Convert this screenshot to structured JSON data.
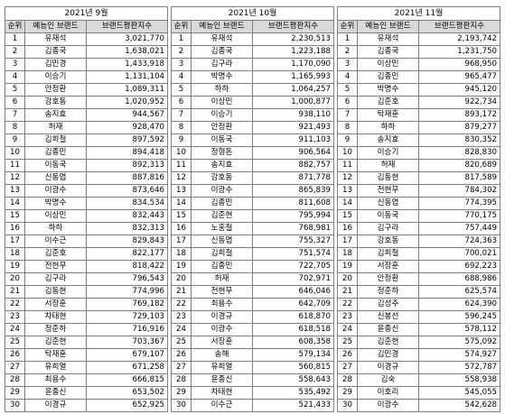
{
  "headers": {
    "rank": "순위",
    "brand": "예능인 브랜드",
    "index": "브랜드평판지수"
  },
  "months": [
    {
      "title": "2021년 9월",
      "rows": [
        [
          "1",
          "유재석",
          "3,021,770"
        ],
        [
          "2",
          "김종국",
          "1,638,021"
        ],
        [
          "3",
          "김민경",
          "1,433,918"
        ],
        [
          "4",
          "이승기",
          "1,131,104"
        ],
        [
          "5",
          "안정환",
          "1,089,311"
        ],
        [
          "6",
          "강호동",
          "1,020,952"
        ],
        [
          "7",
          "송지효",
          "944,567"
        ],
        [
          "8",
          "허재",
          "928,470"
        ],
        [
          "9",
          "김희철",
          "897,592"
        ],
        [
          "10",
          "김종민",
          "894,418"
        ],
        [
          "11",
          "이동국",
          "892,313"
        ],
        [
          "12",
          "신동엽",
          "887,816"
        ],
        [
          "13",
          "이광수",
          "873,646"
        ],
        [
          "14",
          "박명수",
          "834,534"
        ],
        [
          "15",
          "이상민",
          "832,443"
        ],
        [
          "16",
          "하하",
          "832,313"
        ],
        [
          "17",
          "이수근",
          "829,843"
        ],
        [
          "18",
          "김준호",
          "822,177"
        ],
        [
          "19",
          "전현무",
          "818,422"
        ],
        [
          "20",
          "김구라",
          "796,543"
        ],
        [
          "21",
          "김동현",
          "774,996"
        ],
        [
          "22",
          "서장훈",
          "769,182"
        ],
        [
          "23",
          "차태현",
          "729,103"
        ],
        [
          "24",
          "정준하",
          "716,916"
        ],
        [
          "25",
          "김준현",
          "703,367"
        ],
        [
          "26",
          "탁재훈",
          "679,107"
        ],
        [
          "27",
          "유희열",
          "671,258"
        ],
        [
          "28",
          "최용수",
          "666,815"
        ],
        [
          "29",
          "윤종신",
          "653,502"
        ],
        [
          "30",
          "이경규",
          "652,925"
        ]
      ]
    },
    {
      "title": "2021년 10월",
      "rows": [
        [
          "1",
          "유재석",
          "2,230,513"
        ],
        [
          "2",
          "김종국",
          "1,223,188"
        ],
        [
          "3",
          "김구라",
          "1,170,090"
        ],
        [
          "4",
          "박명수",
          "1,165,993"
        ],
        [
          "5",
          "하하",
          "1,064,257"
        ],
        [
          "6",
          "이상민",
          "1,000,877"
        ],
        [
          "7",
          "이승기",
          "938,110"
        ],
        [
          "8",
          "안정환",
          "921,493"
        ],
        [
          "9",
          "이동국",
          "911,103"
        ],
        [
          "10",
          "정형돈",
          "906,564"
        ],
        [
          "11",
          "송지효",
          "882,757"
        ],
        [
          "12",
          "강호동",
          "871,778"
        ],
        [
          "13",
          "이광수",
          "865,839"
        ],
        [
          "14",
          "김종민",
          "811,608"
        ],
        [
          "15",
          "김준현",
          "795,994"
        ],
        [
          "16",
          "노홍철",
          "768,981"
        ],
        [
          "17",
          "신동엽",
          "755,327"
        ],
        [
          "18",
          "김희철",
          "751,574"
        ],
        [
          "19",
          "김종민",
          "722,705"
        ],
        [
          "20",
          "허재",
          "702,971"
        ],
        [
          "21",
          "전현무",
          "646,046"
        ],
        [
          "22",
          "최용수",
          "642,709"
        ],
        [
          "23",
          "이경규",
          "618,870"
        ],
        [
          "24",
          "이광수",
          "618,518"
        ],
        [
          "25",
          "서장훈",
          "608,358"
        ],
        [
          "26",
          "송해",
          "579,134"
        ],
        [
          "27",
          "유희열",
          "560,815"
        ],
        [
          "28",
          "윤종신",
          "558,643"
        ],
        [
          "29",
          "차태현",
          "535,492"
        ],
        [
          "30",
          "이수근",
          "521,433"
        ]
      ]
    },
    {
      "title": "2021년 11월",
      "rows": [
        [
          "1",
          "유재석",
          "2,193,742"
        ],
        [
          "2",
          "김종국",
          "1,231,750"
        ],
        [
          "3",
          "이상민",
          "968,950"
        ],
        [
          "4",
          "김종민",
          "965,477"
        ],
        [
          "5",
          "박명수",
          "945,120"
        ],
        [
          "6",
          "김준호",
          "922,734"
        ],
        [
          "7",
          "탁재훈",
          "893,172"
        ],
        [
          "8",
          "하하",
          "879,277"
        ],
        [
          "9",
          "송지효",
          "830,352"
        ],
        [
          "10",
          "이승기",
          "828,830"
        ],
        [
          "11",
          "허재",
          "820,689"
        ],
        [
          "12",
          "김동현",
          "817,589"
        ],
        [
          "13",
          "전현무",
          "784,302"
        ],
        [
          "14",
          "신동엽",
          "774,395"
        ],
        [
          "15",
          "이동국",
          "770,175"
        ],
        [
          "16",
          "김구라",
          "757,449"
        ],
        [
          "17",
          "강호동",
          "724,363"
        ],
        [
          "18",
          "김희철",
          "700,021"
        ],
        [
          "19",
          "서장훈",
          "692,223"
        ],
        [
          "20",
          "안정환",
          "688,986"
        ],
        [
          "21",
          "정준하",
          "625,574"
        ],
        [
          "22",
          "김성주",
          "624,390"
        ],
        [
          "23",
          "신봉선",
          "596,245"
        ],
        [
          "24",
          "윤종신",
          "578,112"
        ],
        [
          "25",
          "김준현",
          "575,092"
        ],
        [
          "26",
          "김민경",
          "574,927"
        ],
        [
          "27",
          "이경규",
          "572,787"
        ],
        [
          "28",
          "김숙",
          "558,938"
        ],
        [
          "29",
          "이호리",
          "545,055"
        ],
        [
          "30",
          "이광수",
          "542,628"
        ]
      ]
    }
  ]
}
